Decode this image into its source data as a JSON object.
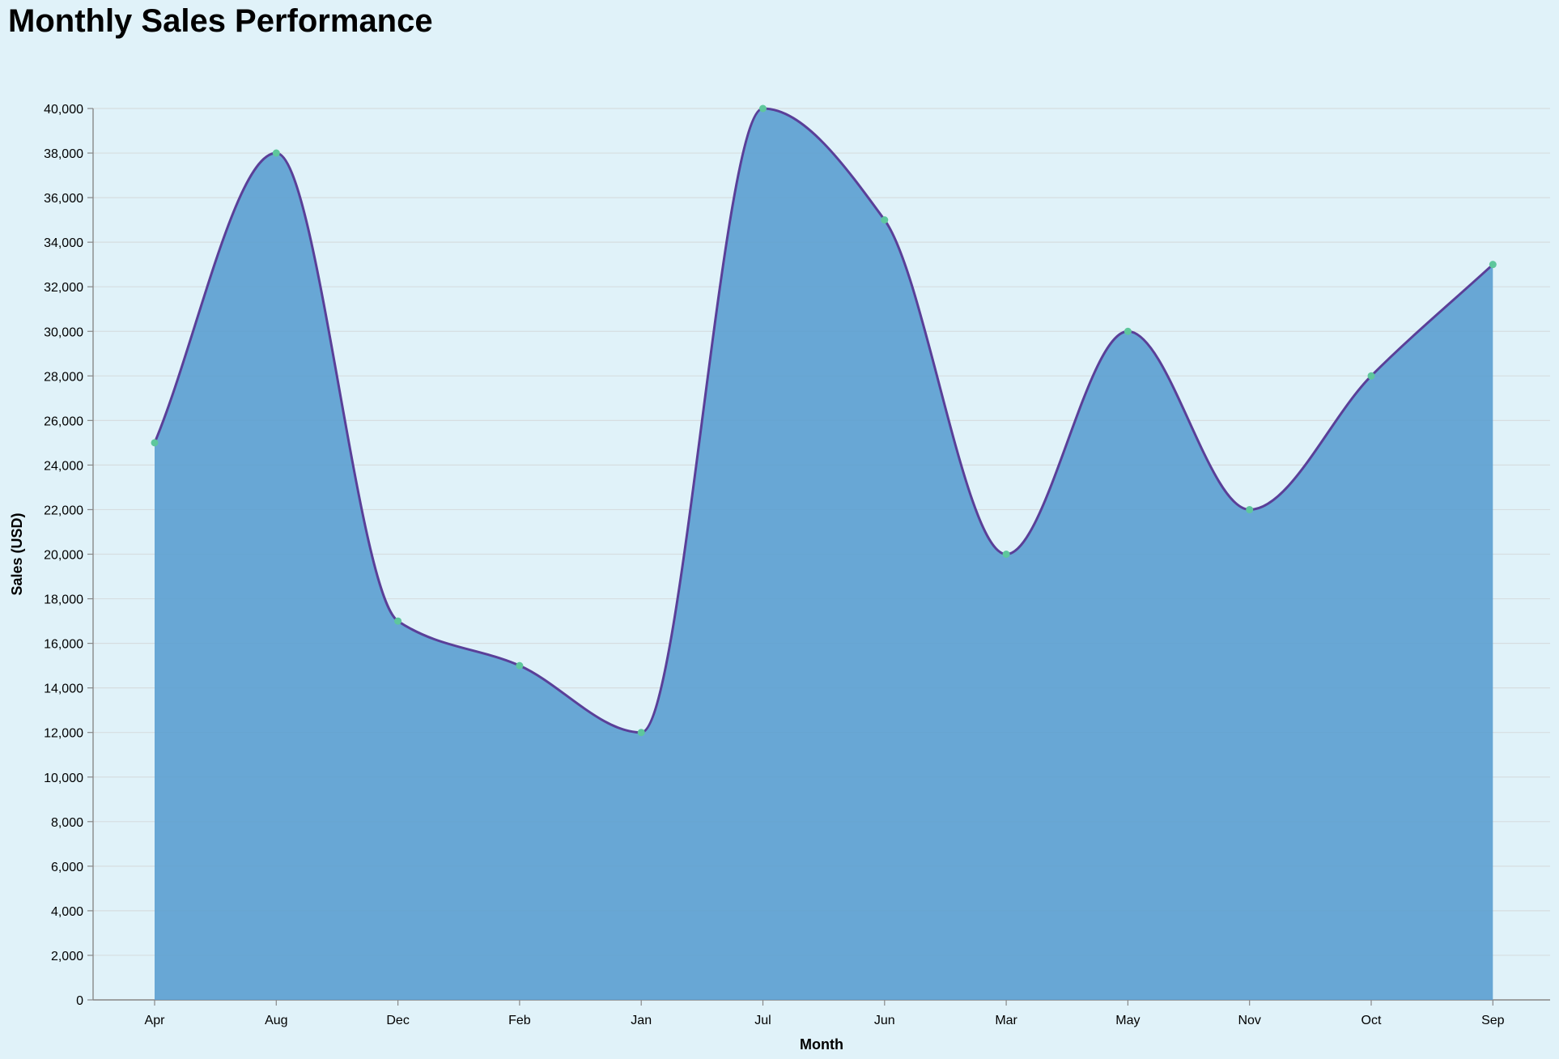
{
  "chart_data": {
    "type": "area",
    "title": "Monthly Sales Performance",
    "xlabel": "Month",
    "ylabel": "Sales (USD)",
    "categories": [
      "Apr",
      "Aug",
      "Dec",
      "Feb",
      "Jan",
      "Jul",
      "Jun",
      "Mar",
      "May",
      "Nov",
      "Oct",
      "Sep"
    ],
    "values": [
      25000,
      38000,
      17000,
      15000,
      12000,
      40000,
      35000,
      20000,
      30000,
      22000,
      28000,
      33000
    ],
    "ylim": [
      0,
      40000
    ],
    "yticks": [
      0,
      2000,
      4000,
      6000,
      8000,
      10000,
      12000,
      14000,
      16000,
      18000,
      20000,
      22000,
      24000,
      26000,
      28000,
      30000,
      32000,
      34000,
      36000,
      38000,
      40000
    ],
    "ytick_labels": [
      "0",
      "2,000",
      "4,000",
      "6,000",
      "8,000",
      "10,000",
      "12,000",
      "14,000",
      "16,000",
      "18,000",
      "20,000",
      "22,000",
      "24,000",
      "26,000",
      "28,000",
      "30,000",
      "32,000",
      "34,000",
      "36,000",
      "38,000",
      "40,000"
    ],
    "grid": true,
    "colors": {
      "fill": "#5b9fd0",
      "line": "#5a3f98",
      "point": "#5ec79c",
      "grid": "#d6dde0",
      "axis": "#888888"
    }
  }
}
